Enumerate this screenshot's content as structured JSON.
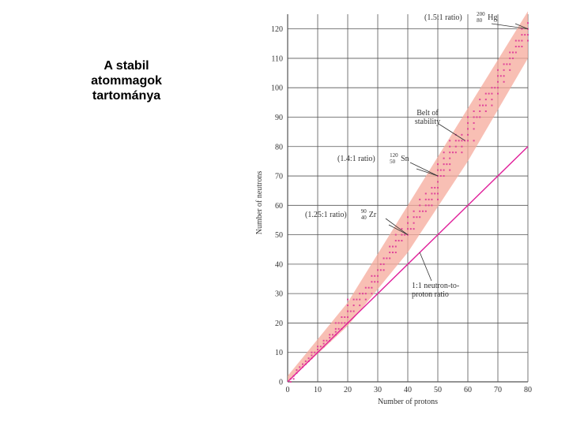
{
  "slide": {
    "title_lines": [
      "A stabil",
      "atommagok",
      "tartománya"
    ]
  },
  "chart_data": {
    "type": "scatter",
    "xlabel": "Number of protons",
    "ylabel": "Number of neutrons",
    "xlim": [
      0,
      80
    ],
    "ylim": [
      0,
      125
    ],
    "x_ticks": [
      0,
      10,
      20,
      30,
      40,
      50,
      60,
      70,
      80
    ],
    "y_ticks": [
      0,
      10,
      20,
      30,
      40,
      50,
      60,
      70,
      80,
      90,
      100,
      110,
      120
    ],
    "grid": true,
    "colors": {
      "band": "#f6a99b",
      "points": "#e0449a",
      "line": "#e0209a",
      "grid": "#555555",
      "text": "#333333"
    },
    "belt_of_stability": {
      "label_lines": [
        "Belt of",
        "stability"
      ],
      "upper": [
        [
          0,
          2
        ],
        [
          20,
          27
        ],
        [
          40,
          60
        ],
        [
          60,
          93
        ],
        [
          80,
          126
        ]
      ],
      "lower": [
        [
          0,
          0
        ],
        [
          20,
          19
        ],
        [
          40,
          44
        ],
        [
          60,
          75
        ],
        [
          80,
          110
        ]
      ]
    },
    "reference_line": {
      "label_lines": [
        "1:1 neutron-to-",
        "proton ratio"
      ],
      "points": [
        [
          0,
          0
        ],
        [
          80,
          80
        ]
      ]
    },
    "annotations": [
      {
        "text": "(1.5:1 ratio)",
        "mass": "200",
        "atomic": "80",
        "symbol": "Hg",
        "x": 80,
        "y": 120
      },
      {
        "text": "(1.4:1 ratio)",
        "mass": "120",
        "atomic": "50",
        "symbol": "Sn",
        "x": 50,
        "y": 70
      },
      {
        "text": "(1.25:1 ratio)",
        "mass": "90",
        "atomic": "40",
        "symbol": "Zr",
        "x": 40,
        "y": 50
      }
    ],
    "series": [
      {
        "points": [
          [
            1,
            0
          ],
          [
            1,
            1
          ],
          [
            2,
            1
          ],
          [
            2,
            2
          ],
          [
            3,
            3
          ],
          [
            3,
            4
          ],
          [
            4,
            5
          ],
          [
            5,
            5
          ],
          [
            5,
            6
          ],
          [
            6,
            6
          ],
          [
            6,
            7
          ],
          [
            7,
            7
          ],
          [
            7,
            8
          ],
          [
            8,
            8
          ],
          [
            8,
            9
          ],
          [
            8,
            10
          ],
          [
            9,
            10
          ],
          [
            10,
            10
          ],
          [
            10,
            11
          ],
          [
            10,
            12
          ],
          [
            11,
            12
          ],
          [
            12,
            12
          ],
          [
            12,
            13
          ],
          [
            12,
            14
          ],
          [
            13,
            14
          ],
          [
            14,
            14
          ],
          [
            14,
            15
          ],
          [
            14,
            16
          ],
          [
            15,
            16
          ],
          [
            16,
            16
          ],
          [
            16,
            17
          ],
          [
            16,
            18
          ],
          [
            16,
            20
          ],
          [
            17,
            18
          ],
          [
            17,
            20
          ],
          [
            18,
            18
          ],
          [
            18,
            20
          ],
          [
            18,
            22
          ],
          [
            19,
            20
          ],
          [
            19,
            22
          ],
          [
            20,
            20
          ],
          [
            20,
            22
          ],
          [
            20,
            24
          ],
          [
            20,
            26
          ],
          [
            20,
            28
          ],
          [
            21,
            24
          ],
          [
            22,
            24
          ],
          [
            22,
            26
          ],
          [
            22,
            28
          ],
          [
            23,
            28
          ],
          [
            24,
            26
          ],
          [
            24,
            28
          ],
          [
            24,
            30
          ],
          [
            25,
            30
          ],
          [
            26,
            28
          ],
          [
            26,
            30
          ],
          [
            26,
            32
          ],
          [
            27,
            32
          ],
          [
            28,
            30
          ],
          [
            28,
            32
          ],
          [
            28,
            34
          ],
          [
            28,
            36
          ],
          [
            29,
            34
          ],
          [
            29,
            36
          ],
          [
            30,
            34
          ],
          [
            30,
            36
          ],
          [
            30,
            38
          ],
          [
            31,
            38
          ],
          [
            31,
            40
          ],
          [
            32,
            38
          ],
          [
            32,
            40
          ],
          [
            32,
            42
          ],
          [
            33,
            42
          ],
          [
            34,
            42
          ],
          [
            34,
            44
          ],
          [
            34,
            46
          ],
          [
            35,
            44
          ],
          [
            35,
            46
          ],
          [
            36,
            44
          ],
          [
            36,
            46
          ],
          [
            36,
            48
          ],
          [
            36,
            50
          ],
          [
            37,
            48
          ],
          [
            38,
            48
          ],
          [
            38,
            50
          ],
          [
            38,
            52
          ],
          [
            39,
            50
          ],
          [
            40,
            50
          ],
          [
            40,
            52
          ],
          [
            40,
            54
          ],
          [
            40,
            56
          ],
          [
            41,
            52
          ],
          [
            42,
            52
          ],
          [
            42,
            54
          ],
          [
            42,
            56
          ],
          [
            42,
            58
          ],
          [
            43,
            56
          ],
          [
            44,
            56
          ],
          [
            44,
            58
          ],
          [
            44,
            60
          ],
          [
            44,
            62
          ],
          [
            45,
            58
          ],
          [
            46,
            58
          ],
          [
            46,
            60
          ],
          [
            46,
            62
          ],
          [
            46,
            64
          ],
          [
            47,
            60
          ],
          [
            47,
            62
          ],
          [
            48,
            60
          ],
          [
            48,
            62
          ],
          [
            48,
            64
          ],
          [
            48,
            66
          ],
          [
            49,
            64
          ],
          [
            49,
            66
          ],
          [
            50,
            62
          ],
          [
            50,
            64
          ],
          [
            50,
            66
          ],
          [
            50,
            68
          ],
          [
            50,
            70
          ],
          [
            50,
            72
          ],
          [
            50,
            74
          ],
          [
            51,
            70
          ],
          [
            51,
            72
          ],
          [
            52,
            70
          ],
          [
            52,
            72
          ],
          [
            52,
            74
          ],
          [
            52,
            76
          ],
          [
            52,
            78
          ],
          [
            53,
            74
          ],
          [
            54,
            72
          ],
          [
            54,
            74
          ],
          [
            54,
            76
          ],
          [
            54,
            78
          ],
          [
            54,
            80
          ],
          [
            54,
            82
          ],
          [
            55,
            78
          ],
          [
            56,
            78
          ],
          [
            56,
            80
          ],
          [
            56,
            82
          ],
          [
            56,
            84
          ],
          [
            57,
            82
          ],
          [
            58,
            78
          ],
          [
            58,
            80
          ],
          [
            58,
            82
          ],
          [
            58,
            84
          ],
          [
            59,
            82
          ],
          [
            60,
            82
          ],
          [
            60,
            84
          ],
          [
            60,
            86
          ],
          [
            60,
            88
          ],
          [
            60,
            90
          ],
          [
            62,
            82
          ],
          [
            62,
            86
          ],
          [
            62,
            88
          ],
          [
            62,
            90
          ],
          [
            62,
            92
          ],
          [
            63,
            90
          ],
          [
            64,
            90
          ],
          [
            64,
            92
          ],
          [
            64,
            94
          ],
          [
            64,
            96
          ],
          [
            65,
            94
          ],
          [
            66,
            92
          ],
          [
            66,
            94
          ],
          [
            66,
            96
          ],
          [
            66,
            98
          ],
          [
            67,
            98
          ],
          [
            68,
            94
          ],
          [
            68,
            96
          ],
          [
            68,
            98
          ],
          [
            68,
            100
          ],
          [
            69,
            100
          ],
          [
            70,
            98
          ],
          [
            70,
            100
          ],
          [
            70,
            102
          ],
          [
            70,
            104
          ],
          [
            70,
            106
          ],
          [
            71,
            104
          ],
          [
            72,
            102
          ],
          [
            72,
            104
          ],
          [
            72,
            106
          ],
          [
            72,
            108
          ],
          [
            73,
            108
          ],
          [
            74,
            106
          ],
          [
            74,
            108
          ],
          [
            74,
            110
          ],
          [
            74,
            112
          ],
          [
            75,
            110
          ],
          [
            75,
            112
          ],
          [
            76,
            112
          ],
          [
            76,
            114
          ],
          [
            76,
            116
          ],
          [
            77,
            114
          ],
          [
            77,
            116
          ],
          [
            78,
            114
          ],
          [
            78,
            116
          ],
          [
            78,
            118
          ],
          [
            78,
            120
          ],
          [
            79,
            118
          ],
          [
            80,
            116
          ],
          [
            80,
            118
          ],
          [
            80,
            120
          ],
          [
            80,
            122
          ]
        ]
      }
    ]
  }
}
